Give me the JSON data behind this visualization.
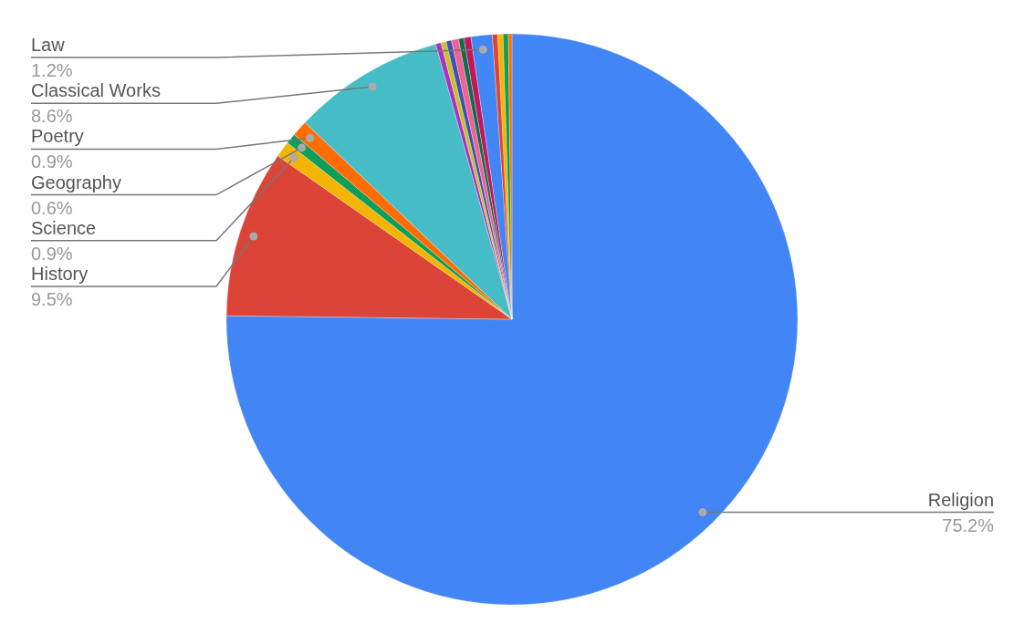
{
  "chart_data": {
    "type": "pie",
    "categories": [
      "Religion",
      "History",
      "Science",
      "Geography",
      "Poetry",
      "Classical Works",
      null,
      null,
      null,
      null,
      null,
      null,
      "Law",
      null,
      null,
      null,
      null
    ],
    "values": [
      75.2,
      9.5,
      0.9,
      0.6,
      0.9,
      8.6,
      0.3,
      0.3,
      0.3,
      0.4,
      0.3,
      0.4,
      1.2,
      0.3,
      0.3,
      0.3,
      0.2
    ],
    "colors": [
      "#4285f4",
      "#db4437",
      "#f4b400",
      "#0f9d58",
      "#ff6d01",
      "#46bdc6",
      "#ab30c4",
      "#c7c12c",
      "#3f51b5",
      "#f06292",
      "#0b6e4f",
      "#c2185b",
      "#4285f4",
      "#db4437",
      "#f4b400",
      "#0f9d58",
      "#ff6d01"
    ],
    "value_labels": [
      "75.2%",
      "9.5%",
      "0.9%",
      "0.6%",
      "0.9%",
      "8.6%",
      null,
      null,
      null,
      null,
      null,
      null,
      "1.2%",
      null,
      null,
      null,
      null
    ]
  }
}
